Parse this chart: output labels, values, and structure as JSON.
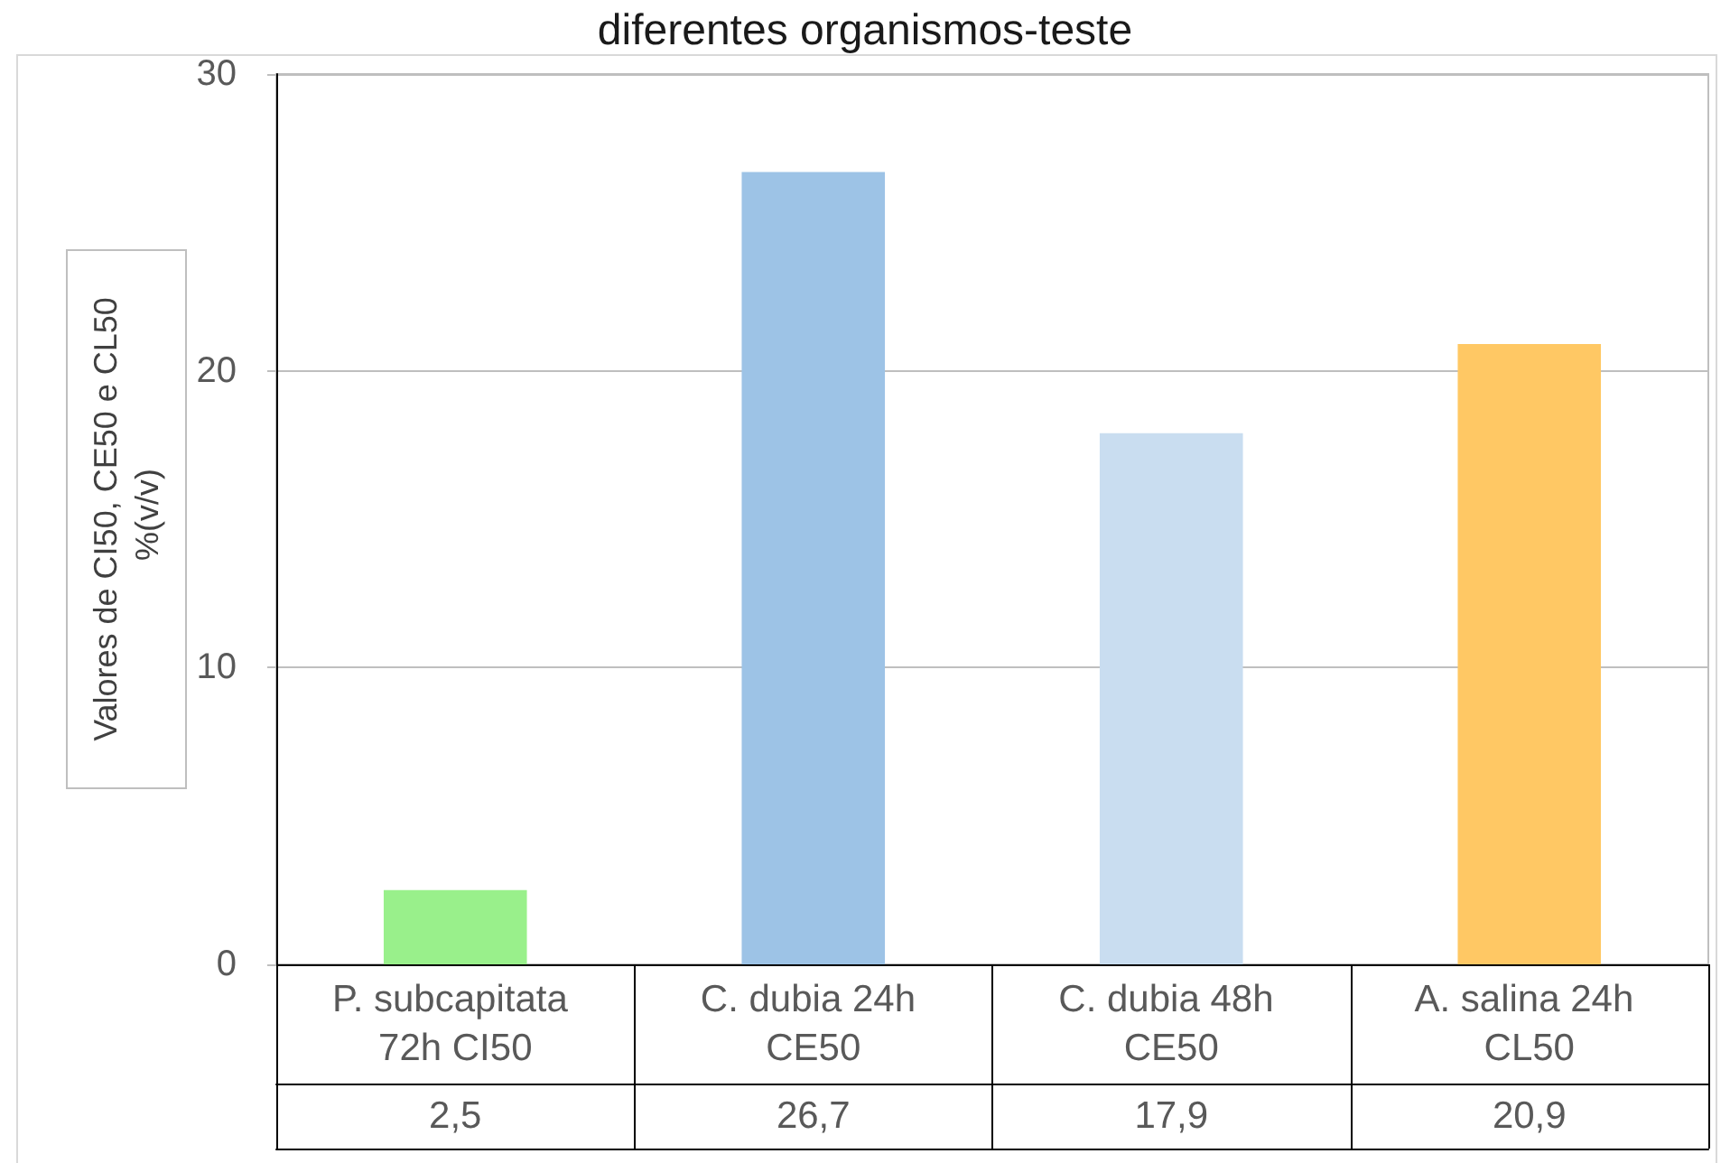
{
  "chart_data": {
    "type": "bar",
    "title": "diferentes organismos-teste",
    "ylabel": "Valores de CI50, CE50 e CL50 %(v/v)",
    "categories": [
      "P. subcapitata 72h CI50",
      "C. dubia 24h CE50",
      "C. dubia 48h CE50",
      "A. salina 24h CL50"
    ],
    "values": [
      2.5,
      26.7,
      17.9,
      20.9
    ],
    "value_labels": [
      "2,5",
      "26,7",
      "17,9",
      "20,9"
    ],
    "colors": [
      "#99f08b",
      "#9dc3e6",
      "#c9ddf0",
      "#ffc864"
    ],
    "ylim": [
      0,
      30
    ],
    "yticks": [
      0,
      10,
      20,
      30
    ],
    "grid": "y"
  }
}
